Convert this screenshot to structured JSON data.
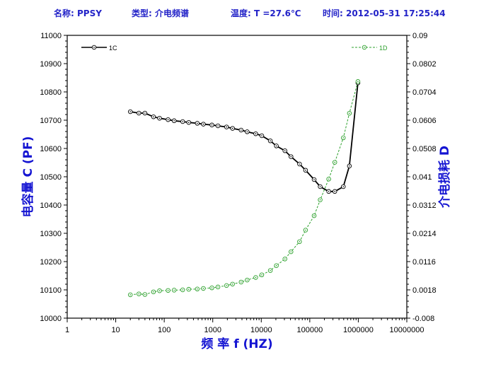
{
  "header": {
    "name": "名称: PPSY",
    "type": "类型: 介电频谱",
    "temperature": "温度: T =27.6℃",
    "time": "时间: 2012-05-31 17:25:44"
  },
  "colors": {
    "series_1c": "#000000",
    "series_1d": "#2ca02c",
    "axis_title": "#1414d2",
    "header_text": "#2323c8"
  },
  "chart_data": {
    "type": "line",
    "xlabel": "频 率  f (HZ)",
    "ylabel_left": "电容量  C (PF)",
    "ylabel_right": "介电损耗  D",
    "x_scale": "log",
    "xlim": [
      1,
      10000000
    ],
    "x_ticks": [
      "1",
      "10",
      "100",
      "1000",
      "10000",
      "100000",
      "1000000",
      "10000000"
    ],
    "ylim_left": [
      10000,
      11000
    ],
    "y_ticks_left": [
      "10000",
      "10100",
      "10200",
      "10300",
      "10400",
      "10500",
      "10600",
      "10700",
      "10800",
      "10900",
      "11000"
    ],
    "ylim_right": [
      -0.008,
      0.09
    ],
    "y_ticks_right": [
      "-0.008",
      "0.0018",
      "0.0116",
      "0.0214",
      "0.0312",
      "0.041",
      "0.0508",
      "0.0606",
      "0.0704",
      "0.0802",
      "0.09"
    ],
    "grid": false,
    "legend": [
      {
        "name": "1C",
        "placement": "top-left"
      },
      {
        "name": "1D",
        "placement": "top-right"
      }
    ],
    "series": [
      {
        "name": "1C",
        "axis": "left",
        "line": "solid",
        "x": [
          20,
          30,
          40,
          60,
          80,
          120,
          160,
          240,
          320,
          480,
          640,
          960,
          1280,
          1920,
          2560,
          3840,
          5120,
          7680,
          10240,
          15360,
          20480,
          30720,
          40960,
          61440,
          81920,
          122880,
          163840,
          245760,
          327680,
          491520,
          655360,
          983040
        ],
        "values": [
          10730,
          10725,
          10725,
          10712,
          10707,
          10702,
          10698,
          10695,
          10692,
          10689,
          10686,
          10683,
          10680,
          10676,
          10671,
          10665,
          10659,
          10652,
          10645,
          10627,
          10609,
          10592,
          10571,
          10545,
          10523,
          10490,
          10465,
          10448,
          10448,
          10465,
          10538,
          10832
        ]
      },
      {
        "name": "1D",
        "axis": "right",
        "line": "dashed",
        "x": [
          20,
          30,
          40,
          60,
          80,
          120,
          160,
          240,
          320,
          480,
          640,
          960,
          1280,
          1920,
          2560,
          3840,
          5120,
          7680,
          10240,
          15360,
          20480,
          30720,
          40960,
          61440,
          81920,
          122880,
          163840,
          245760,
          327680,
          491520,
          655360,
          983040
        ],
        "values": [
          0.0001,
          0.0004,
          0.0002,
          0.0011,
          0.0015,
          0.0016,
          0.0017,
          0.0018,
          0.002,
          0.0021,
          0.0023,
          0.0025,
          0.0028,
          0.0033,
          0.0038,
          0.0045,
          0.0052,
          0.0061,
          0.007,
          0.0085,
          0.0102,
          0.0125,
          0.015,
          0.0185,
          0.0225,
          0.0275,
          0.033,
          0.0402,
          0.046,
          0.0545,
          0.063,
          0.074
        ]
      }
    ]
  }
}
